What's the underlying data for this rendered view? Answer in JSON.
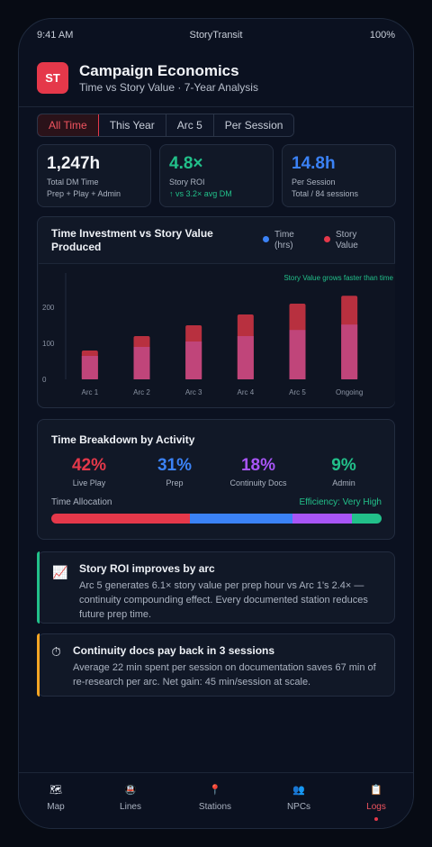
{
  "status": {
    "time": "9:41 AM",
    "carrier": "StoryTransit",
    "battery": "100%"
  },
  "header": {
    "logo": "ST",
    "title": "Campaign Economics",
    "subtitle": "Time vs Story Value · 7-Year Analysis"
  },
  "tabs": [
    {
      "label": "All Time",
      "active": true
    },
    {
      "label": "This Year"
    },
    {
      "label": "Arc 5"
    },
    {
      "label": "Per Session"
    }
  ],
  "stats": [
    {
      "value": "1,247h",
      "line1": "Total DM Time",
      "line2": "Prep + Play + Admin",
      "color": "#f2f4f8",
      "line2_color": "#aab2c0"
    },
    {
      "value": "4.8×",
      "line1": "Story ROI",
      "line2": "↑ vs 3.2× avg DM",
      "color": "#22c08a",
      "line2_color": "#22c08a"
    },
    {
      "value": "14.8h",
      "line1": "Per Session",
      "line2": "Total / 84 sessions",
      "color": "#3b82f6",
      "line2_color": "#aab2c0"
    }
  ],
  "chart": {
    "title": "Time Investment vs Story Value Produced",
    "annotation": "Story Value grows faster than time",
    "legend": [
      {
        "label": "Time (hrs)",
        "color": "#3b82f6"
      },
      {
        "label": "Story Value",
        "color": "#e5384a"
      }
    ]
  },
  "chart_data": {
    "type": "bar",
    "categories": [
      "Arc 1",
      "Arc 2",
      "Arc 3",
      "Arc 4",
      "Arc 5",
      "Ongoing"
    ],
    "series": [
      {
        "name": "Time (hrs)",
        "values": [
          65,
          90,
          105,
          120,
          137,
          152
        ]
      },
      {
        "name": "Story Value",
        "values": [
          80,
          120,
          150,
          180,
          210,
          232
        ]
      }
    ],
    "yticks": [
      0,
      100,
      200
    ],
    "ylim": [
      0,
      250
    ],
    "colors": {
      "story": "#b8303f",
      "time": "#c0457a"
    },
    "annotation": "Story Value grows faster than time"
  },
  "breakdown": {
    "title": "Time Breakdown by Activity",
    "items": [
      {
        "pct": "42%",
        "label": "Live Play",
        "color": "#e5384a",
        "share": 42
      },
      {
        "pct": "31%",
        "label": "Prep",
        "color": "#3b82f6",
        "share": 31
      },
      {
        "pct": "18%",
        "label": "Continuity Docs",
        "color": "#a855f7",
        "share": 18
      },
      {
        "pct": "9%",
        "label": "Admin",
        "color": "#22c08a",
        "share": 9
      }
    ],
    "allocation_label": "Time Allocation",
    "efficiency": "Efficiency: Very High"
  },
  "insights": [
    {
      "icon": "📈",
      "icon_name": "chart-up-icon",
      "title": "Story ROI improves by arc",
      "body": "Arc 5 generates 6.1× story value per prep hour vs Arc 1's 2.4× — continuity compounding effect. Every documented station reduces future prep time.",
      "accent": "#22c08a"
    },
    {
      "icon": "⏱",
      "icon_name": "stopwatch-icon",
      "title": "Continuity docs pay back in 3 sessions",
      "body": "Average 22 min spent per session on documentation saves 67 min of re-research per arc. Net gain: 45 min/session at scale.",
      "accent": "#f5a524"
    }
  ],
  "nav": [
    {
      "icon": "🗺",
      "icon_name": "map-icon",
      "label": "Map"
    },
    {
      "icon": "🚇",
      "icon_name": "metro-icon",
      "label": "Lines"
    },
    {
      "icon": "📍",
      "icon_name": "pin-icon",
      "label": "Stations"
    },
    {
      "icon": "👥",
      "icon_name": "people-icon",
      "label": "NPCs"
    },
    {
      "icon": "📋",
      "icon_name": "clipboard-icon",
      "label": "Logs",
      "active": true
    }
  ]
}
